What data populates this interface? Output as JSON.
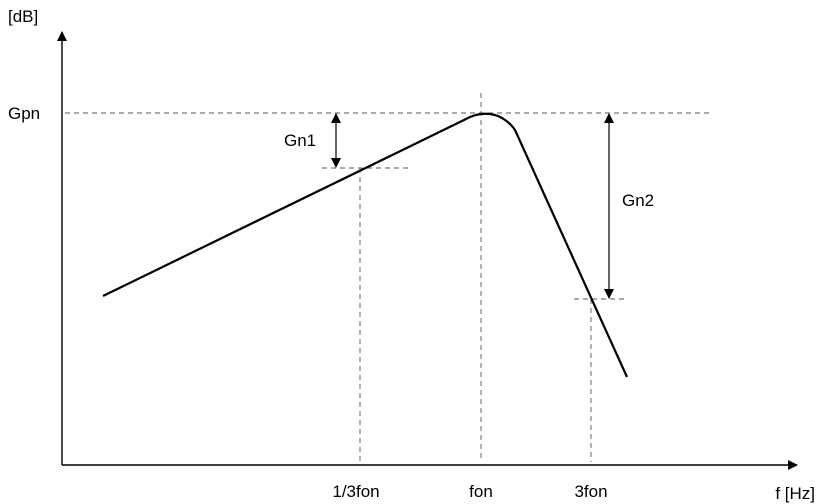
{
  "labels": {
    "y_unit": "[dB]",
    "x_unit": "f [Hz]",
    "peak_level": "Gpn",
    "drop_low": "Gn1",
    "drop_high": "Gn2",
    "freq_third": "1/3fon",
    "freq_peak": "fon",
    "freq_triple": "3fon"
  },
  "colors": {
    "line": "#000000",
    "background": "#ffffff"
  }
}
